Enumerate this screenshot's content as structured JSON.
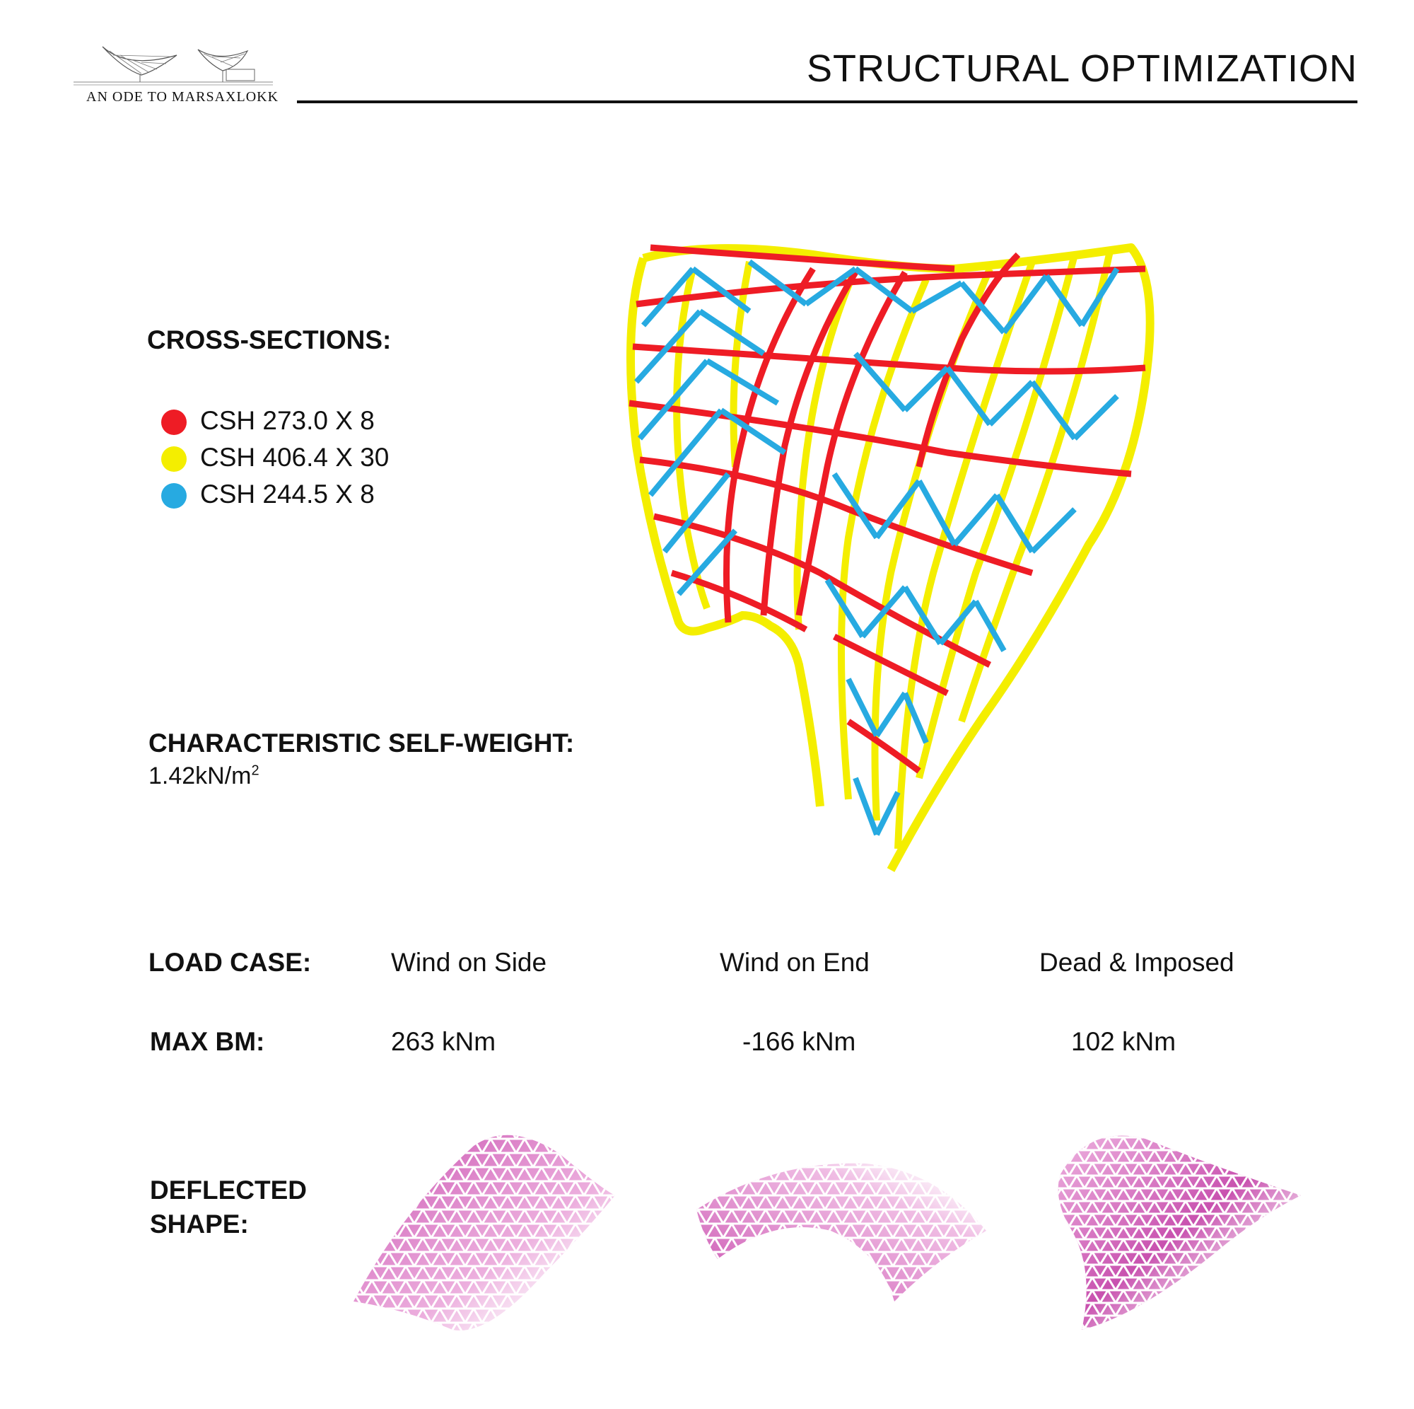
{
  "header": {
    "logo_text": "AN ODE TO MARSAXLOKK",
    "title": "STRUCTURAL OPTIMIZATION"
  },
  "cross_sections": {
    "heading": "CROSS-SECTIONS:",
    "items": [
      {
        "label": "CSH 273.0 X 8",
        "color": "#ee1c25"
      },
      {
        "label": "CSH 406.4 X 30",
        "color": "#f4ee00"
      },
      {
        "label": "CSH 244.5 X 8",
        "color": "#27aae1"
      }
    ]
  },
  "self_weight": {
    "heading": "CHARACTERISTIC SELF-WEIGHT:",
    "value": "1.42kN/m",
    "superscript": "2"
  },
  "load_case": {
    "heading": "LOAD CASE:",
    "cases": [
      "Wind on Side",
      "Wind on End",
      "Dead & Imposed"
    ]
  },
  "max_bm": {
    "heading": "MAX BM:",
    "values": [
      "263 kNm",
      "-166 kNm",
      "102 kNm"
    ]
  },
  "deflected_shape": {
    "heading_line1": "DEFLECTED",
    "heading_line2": "SHAPE:",
    "color": "#c23ea6"
  }
}
